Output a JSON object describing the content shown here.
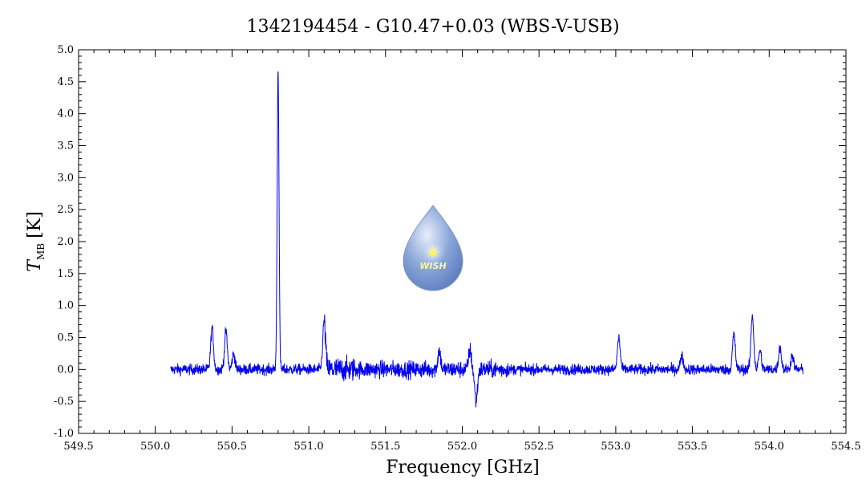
{
  "chart_data": {
    "type": "line",
    "title": "1342194454 - G10.47+0.03 (WBS-V-USB)",
    "xlabel": "Frequency [GHz]",
    "ylabel_main": "T",
    "ylabel_sub": "MB",
    "ylabel_unit": "[K]",
    "xlim": [
      549.5,
      554.5
    ],
    "ylim": [
      -1.0,
      5.0
    ],
    "x_ticks": [
      "549.5",
      "550.0",
      "550.5",
      "551.0",
      "551.5",
      "552.0",
      "552.5",
      "553.0",
      "553.5",
      "554.0",
      "554.5"
    ],
    "y_ticks": [
      "-1.0",
      "-0.5",
      "0.0",
      "0.5",
      "1.0",
      "1.5",
      "2.0",
      "2.5",
      "3.0",
      "3.5",
      "4.0",
      "4.5",
      "5.0"
    ],
    "grid": false,
    "legend": "none",
    "series": [
      {
        "color": "#0000ee",
        "x_range": [
          550.1,
          554.22
        ],
        "baseline": 0.0,
        "noise_rms": 0.06,
        "peaks": [
          {
            "x": 550.37,
            "y": 0.65
          },
          {
            "x": 550.46,
            "y": 0.6
          },
          {
            "x": 550.51,
            "y": 0.25
          },
          {
            "x": 550.8,
            "y": 4.7
          },
          {
            "x": 551.1,
            "y": 0.75
          },
          {
            "x": 551.85,
            "y": 0.3
          },
          {
            "x": 552.05,
            "y": 0.3
          },
          {
            "x": 552.09,
            "y": -0.5
          },
          {
            "x": 553.02,
            "y": 0.5
          },
          {
            "x": 553.43,
            "y": 0.22
          },
          {
            "x": 553.77,
            "y": 0.55
          },
          {
            "x": 553.89,
            "y": 0.85
          },
          {
            "x": 553.94,
            "y": 0.3
          },
          {
            "x": 554.07,
            "y": 0.35
          },
          {
            "x": 554.15,
            "y": 0.22
          }
        ]
      }
    ]
  },
  "logo": {
    "text": "WISH",
    "drop_color": "#8aa6d8",
    "star_color": "#fff266"
  }
}
